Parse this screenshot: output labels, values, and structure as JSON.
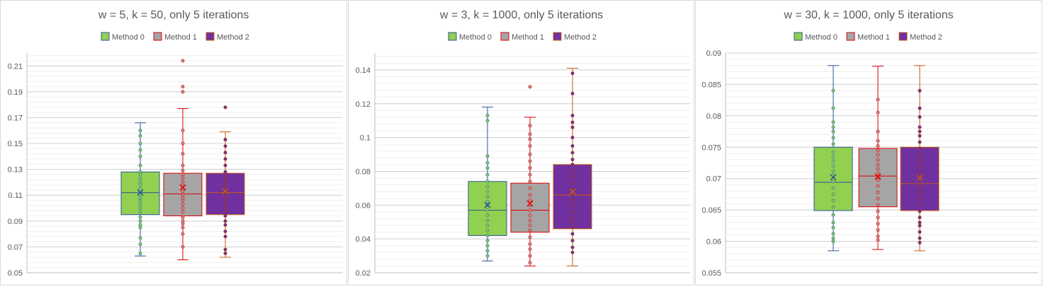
{
  "legend_labels": [
    "Method 0",
    "Method 1",
    "Method 2"
  ],
  "chart_data": [
    {
      "type": "box",
      "title": "w = 5, k = 50, only 5 iterations",
      "ylim": [
        0.05,
        0.22
      ],
      "yticks": [
        0.05,
        0.07,
        0.09,
        0.11,
        0.13,
        0.15,
        0.17,
        0.19,
        0.21
      ],
      "grid": true,
      "legend_position": "top",
      "series": [
        {
          "name": "Method 0",
          "fill": "#92d050",
          "line": "#2e5597",
          "dot": "#4a8f8f",
          "min": 0.063,
          "q1": 0.095,
          "median": 0.112,
          "q3": 0.128,
          "max": 0.166,
          "mean": 0.112,
          "outliers": [],
          "points": [
            0.065,
            0.072,
            0.077,
            0.085,
            0.087,
            0.09,
            0.093,
            0.097,
            0.1,
            0.103,
            0.106,
            0.108,
            0.111,
            0.113,
            0.115,
            0.118,
            0.12,
            0.123,
            0.126,
            0.128,
            0.133,
            0.14,
            0.145,
            0.15,
            0.156,
            0.16
          ]
        },
        {
          "name": "Method 1",
          "fill": "#a5a5a5",
          "line": "#e00000",
          "dot": "#e03030",
          "min": 0.06,
          "q1": 0.094,
          "median": 0.111,
          "q3": 0.127,
          "max": 0.177,
          "mean": 0.116,
          "outliers": [
            0.19,
            0.194,
            0.214
          ],
          "points": [
            0.07,
            0.08,
            0.085,
            0.088,
            0.09,
            0.093,
            0.097,
            0.1,
            0.103,
            0.106,
            0.108,
            0.11,
            0.113,
            0.115,
            0.117,
            0.12,
            0.123,
            0.126,
            0.129,
            0.133,
            0.142,
            0.15,
            0.16
          ]
        },
        {
          "name": "Method 2",
          "fill": "#7030a0",
          "line": "#c55a11",
          "dot": "#943634",
          "min": 0.062,
          "q1": 0.095,
          "median": 0.112,
          "q3": 0.127,
          "max": 0.159,
          "mean": 0.113,
          "outliers": [
            0.178
          ],
          "points": [
            0.065,
            0.068,
            0.078,
            0.082,
            0.087,
            0.09,
            0.094,
            0.098,
            0.101,
            0.104,
            0.107,
            0.11,
            0.113,
            0.115,
            0.118,
            0.12,
            0.122,
            0.125,
            0.128,
            0.133,
            0.138,
            0.143,
            0.148,
            0.153
          ]
        }
      ]
    },
    {
      "type": "box",
      "title": "w = 3, k = 1000, only 5 iterations",
      "ylim": [
        0.02,
        0.15
      ],
      "yticks": [
        0.02,
        0.04,
        0.06,
        0.08,
        0.1,
        0.12,
        0.14
      ],
      "grid": true,
      "legend_position": "top",
      "series": [
        {
          "name": "Method 0",
          "fill": "#92d050",
          "line": "#2e5597",
          "dot": "#4a8f8f",
          "min": 0.027,
          "q1": 0.042,
          "median": 0.057,
          "q3": 0.074,
          "max": 0.118,
          "mean": 0.06,
          "outliers": [],
          "points": [
            0.03,
            0.033,
            0.036,
            0.039,
            0.042,
            0.045,
            0.048,
            0.051,
            0.054,
            0.057,
            0.06,
            0.062,
            0.065,
            0.068,
            0.071,
            0.074,
            0.078,
            0.082,
            0.085,
            0.089,
            0.11,
            0.113
          ]
        },
        {
          "name": "Method 1",
          "fill": "#a5a5a5",
          "line": "#e00000",
          "dot": "#e03030",
          "min": 0.024,
          "q1": 0.044,
          "median": 0.057,
          "q3": 0.073,
          "max": 0.112,
          "mean": 0.061,
          "outliers": [
            0.13
          ],
          "points": [
            0.026,
            0.03,
            0.034,
            0.037,
            0.041,
            0.045,
            0.048,
            0.051,
            0.054,
            0.057,
            0.06,
            0.063,
            0.066,
            0.07,
            0.074,
            0.078,
            0.082,
            0.086,
            0.09,
            0.095,
            0.099,
            0.102,
            0.107
          ]
        },
        {
          "name": "Method 2",
          "fill": "#7030a0",
          "line": "#c55a11",
          "dot": "#943634",
          "min": 0.024,
          "q1": 0.046,
          "median": 0.066,
          "q3": 0.084,
          "max": 0.141,
          "mean": 0.068,
          "outliers": [],
          "points": [
            0.032,
            0.035,
            0.039,
            0.043,
            0.047,
            0.05,
            0.053,
            0.056,
            0.06,
            0.063,
            0.066,
            0.069,
            0.073,
            0.077,
            0.08,
            0.084,
            0.087,
            0.091,
            0.095,
            0.1,
            0.106,
            0.109,
            0.113,
            0.126,
            0.138
          ]
        }
      ]
    },
    {
      "type": "box",
      "title": "w = 30, k = 1000, only 5 iterations",
      "ylim": [
        0.055,
        0.09
      ],
      "yticks": [
        0.055,
        0.06,
        0.065,
        0.07,
        0.075,
        0.08,
        0.085,
        0.09
      ],
      "grid": true,
      "legend_position": "top",
      "series": [
        {
          "name": "Method 0",
          "fill": "#92d050",
          "line": "#2e5597",
          "dot": "#4a8f8f",
          "min": 0.0585,
          "q1": 0.0649,
          "median": 0.0694,
          "q3": 0.075,
          "max": 0.088,
          "mean": 0.0702,
          "outliers": [],
          "points": [
            0.06,
            0.0605,
            0.0612,
            0.0622,
            0.063,
            0.0642,
            0.0655,
            0.0665,
            0.0675,
            0.0685,
            0.0695,
            0.0705,
            0.0712,
            0.072,
            0.0728,
            0.0735,
            0.0742,
            0.0755,
            0.0765,
            0.0775,
            0.0782,
            0.079,
            0.0812,
            0.084
          ]
        },
        {
          "name": "Method 1",
          "fill": "#a5a5a5",
          "line": "#e00000",
          "dot": "#e03030",
          "min": 0.0587,
          "q1": 0.0655,
          "median": 0.0704,
          "q3": 0.0748,
          "max": 0.0879,
          "mean": 0.0703,
          "outliers": [],
          "points": [
            0.0602,
            0.0608,
            0.0618,
            0.0628,
            0.0638,
            0.0648,
            0.0658,
            0.0668,
            0.0678,
            0.0688,
            0.0698,
            0.0708,
            0.0715,
            0.0722,
            0.073,
            0.0738,
            0.0745,
            0.0752,
            0.076,
            0.0775,
            0.0805,
            0.0826
          ]
        },
        {
          "name": "Method 2",
          "fill": "#7030a0",
          "line": "#c55a11",
          "dot": "#943634",
          "min": 0.0585,
          "q1": 0.0649,
          "median": 0.0692,
          "q3": 0.075,
          "max": 0.088,
          "mean": 0.0701,
          "outliers": [],
          "points": [
            0.0598,
            0.0605,
            0.0615,
            0.0625,
            0.063,
            0.0638,
            0.0648,
            0.0658,
            0.0668,
            0.0678,
            0.0688,
            0.0698,
            0.0708,
            0.0718,
            0.0728,
            0.0738,
            0.0748,
            0.0758,
            0.0768,
            0.0775,
            0.0782,
            0.0798,
            0.0812,
            0.084
          ]
        }
      ]
    }
  ]
}
